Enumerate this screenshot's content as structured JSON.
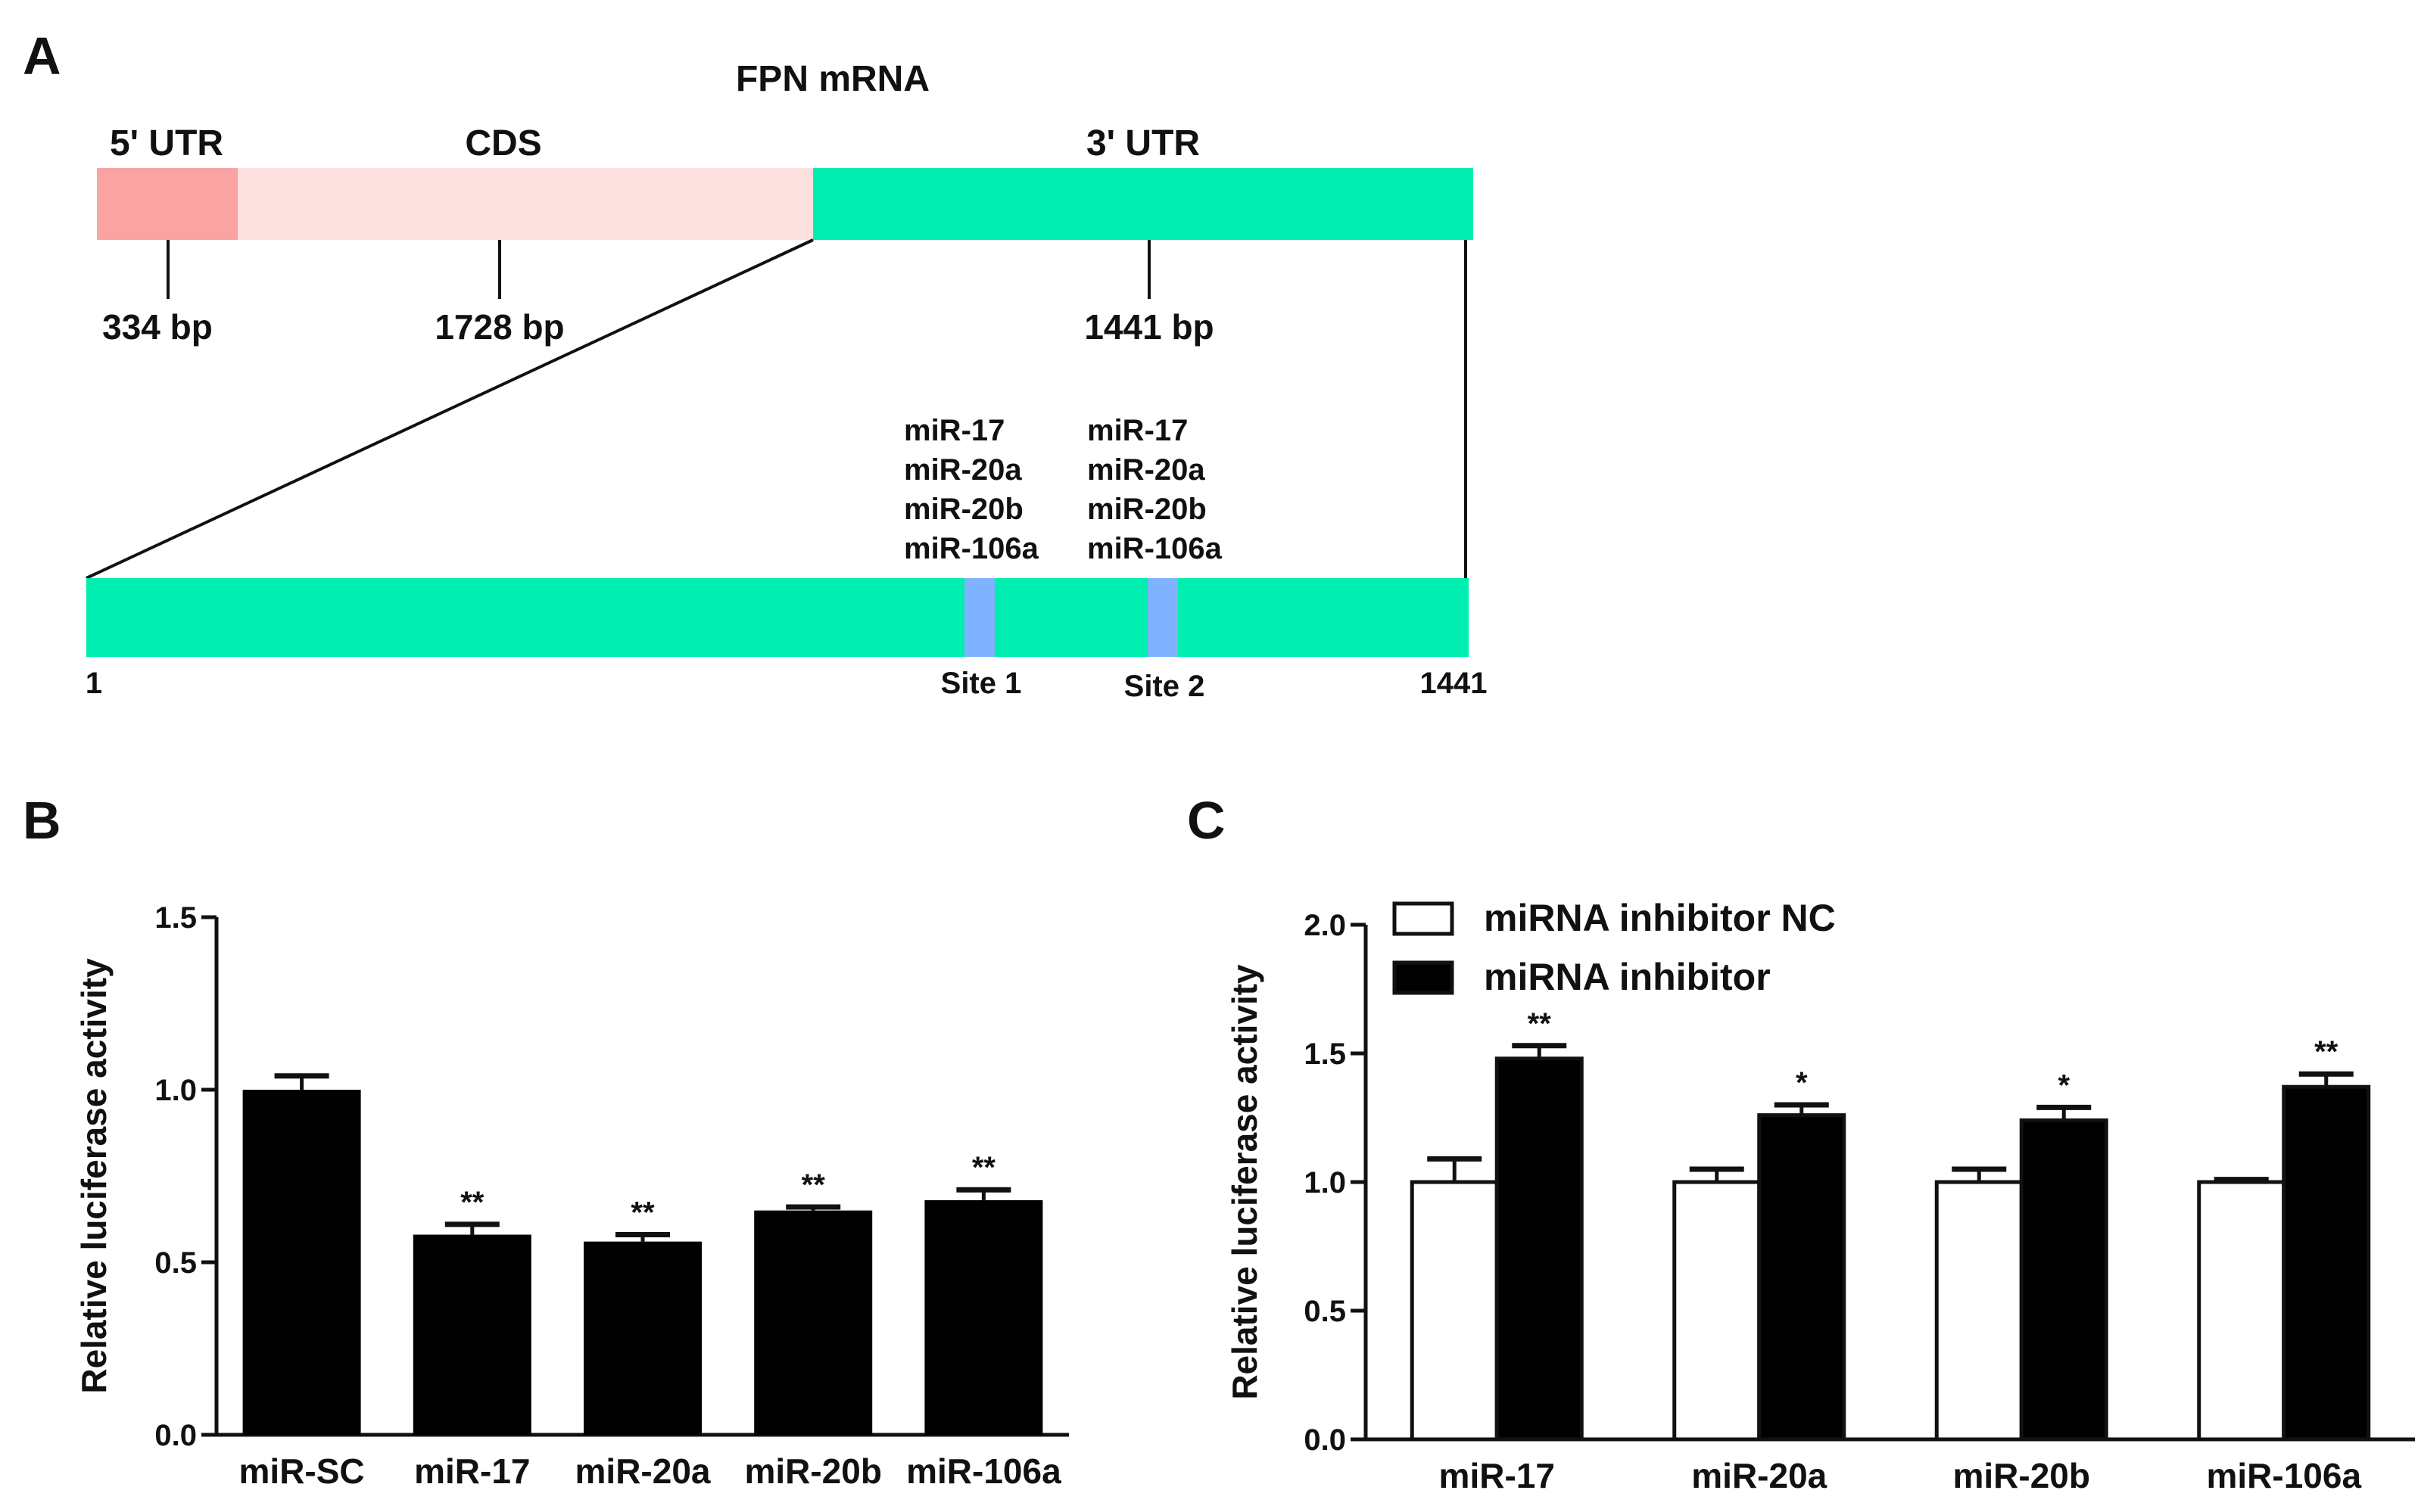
{
  "panel_a": {
    "label": "A",
    "title": "FPN mRNA",
    "regions": [
      {
        "name": "5' UTR",
        "size": "334 bp",
        "color": "#f9a3a3"
      },
      {
        "name": "CDS",
        "size": "1728 bp",
        "color": "#fde0e0"
      },
      {
        "name": "3' UTR",
        "size": "1441 bp",
        "color": "#00eeb0"
      }
    ],
    "zoom": {
      "start": "1",
      "end": "1441",
      "site_color": "#7fb2ff",
      "sites": [
        {
          "label": "Site 1",
          "mirnas": [
            "miR-17",
            "miR-20a",
            "miR-20b",
            "miR-106a"
          ]
        },
        {
          "label": "Site 2",
          "mirnas": [
            "miR-17",
            "miR-20a",
            "miR-20b",
            "miR-106a"
          ]
        }
      ]
    }
  },
  "chart_data": [
    {
      "panel": "B",
      "type": "bar",
      "categories": [
        "miR-SC",
        "miR-17",
        "miR-20a",
        "miR-20b",
        "miR-106a"
      ],
      "values": [
        1.0,
        0.58,
        0.56,
        0.65,
        0.68
      ],
      "errors": [
        0.04,
        0.03,
        0.02,
        0.01,
        0.03
      ],
      "significance": [
        "",
        "**",
        "**",
        "**",
        "**"
      ],
      "ylabel": "Relative luciferase activity",
      "ylim": [
        0,
        1.5
      ],
      "yticks": [
        "0.0",
        "0.5",
        "1.0",
        "1.5"
      ],
      "bar_color": "#000000"
    },
    {
      "panel": "C",
      "type": "bar",
      "categories": [
        "miR-17",
        "miR-20a",
        "miR-20b",
        "miR-106a"
      ],
      "series": [
        {
          "name": "miRNA inhibitor NC",
          "values": [
            1.0,
            1.0,
            1.0,
            1.0
          ],
          "errors": [
            0.09,
            0.05,
            0.05,
            0.01
          ],
          "color": "#ffffff"
        },
        {
          "name": "miRNA inhibitor",
          "values": [
            1.48,
            1.26,
            1.24,
            1.37
          ],
          "errors": [
            0.05,
            0.04,
            0.05,
            0.05
          ],
          "color": "#000000"
        }
      ],
      "significance": [
        "**",
        "*",
        "*",
        "**"
      ],
      "ylabel": "Relative luciferase activity",
      "ylim": [
        0,
        2.0
      ],
      "yticks": [
        "0.0",
        "0.5",
        "1.0",
        "1.5",
        "2.0"
      ],
      "legend_position": "top-left"
    }
  ]
}
